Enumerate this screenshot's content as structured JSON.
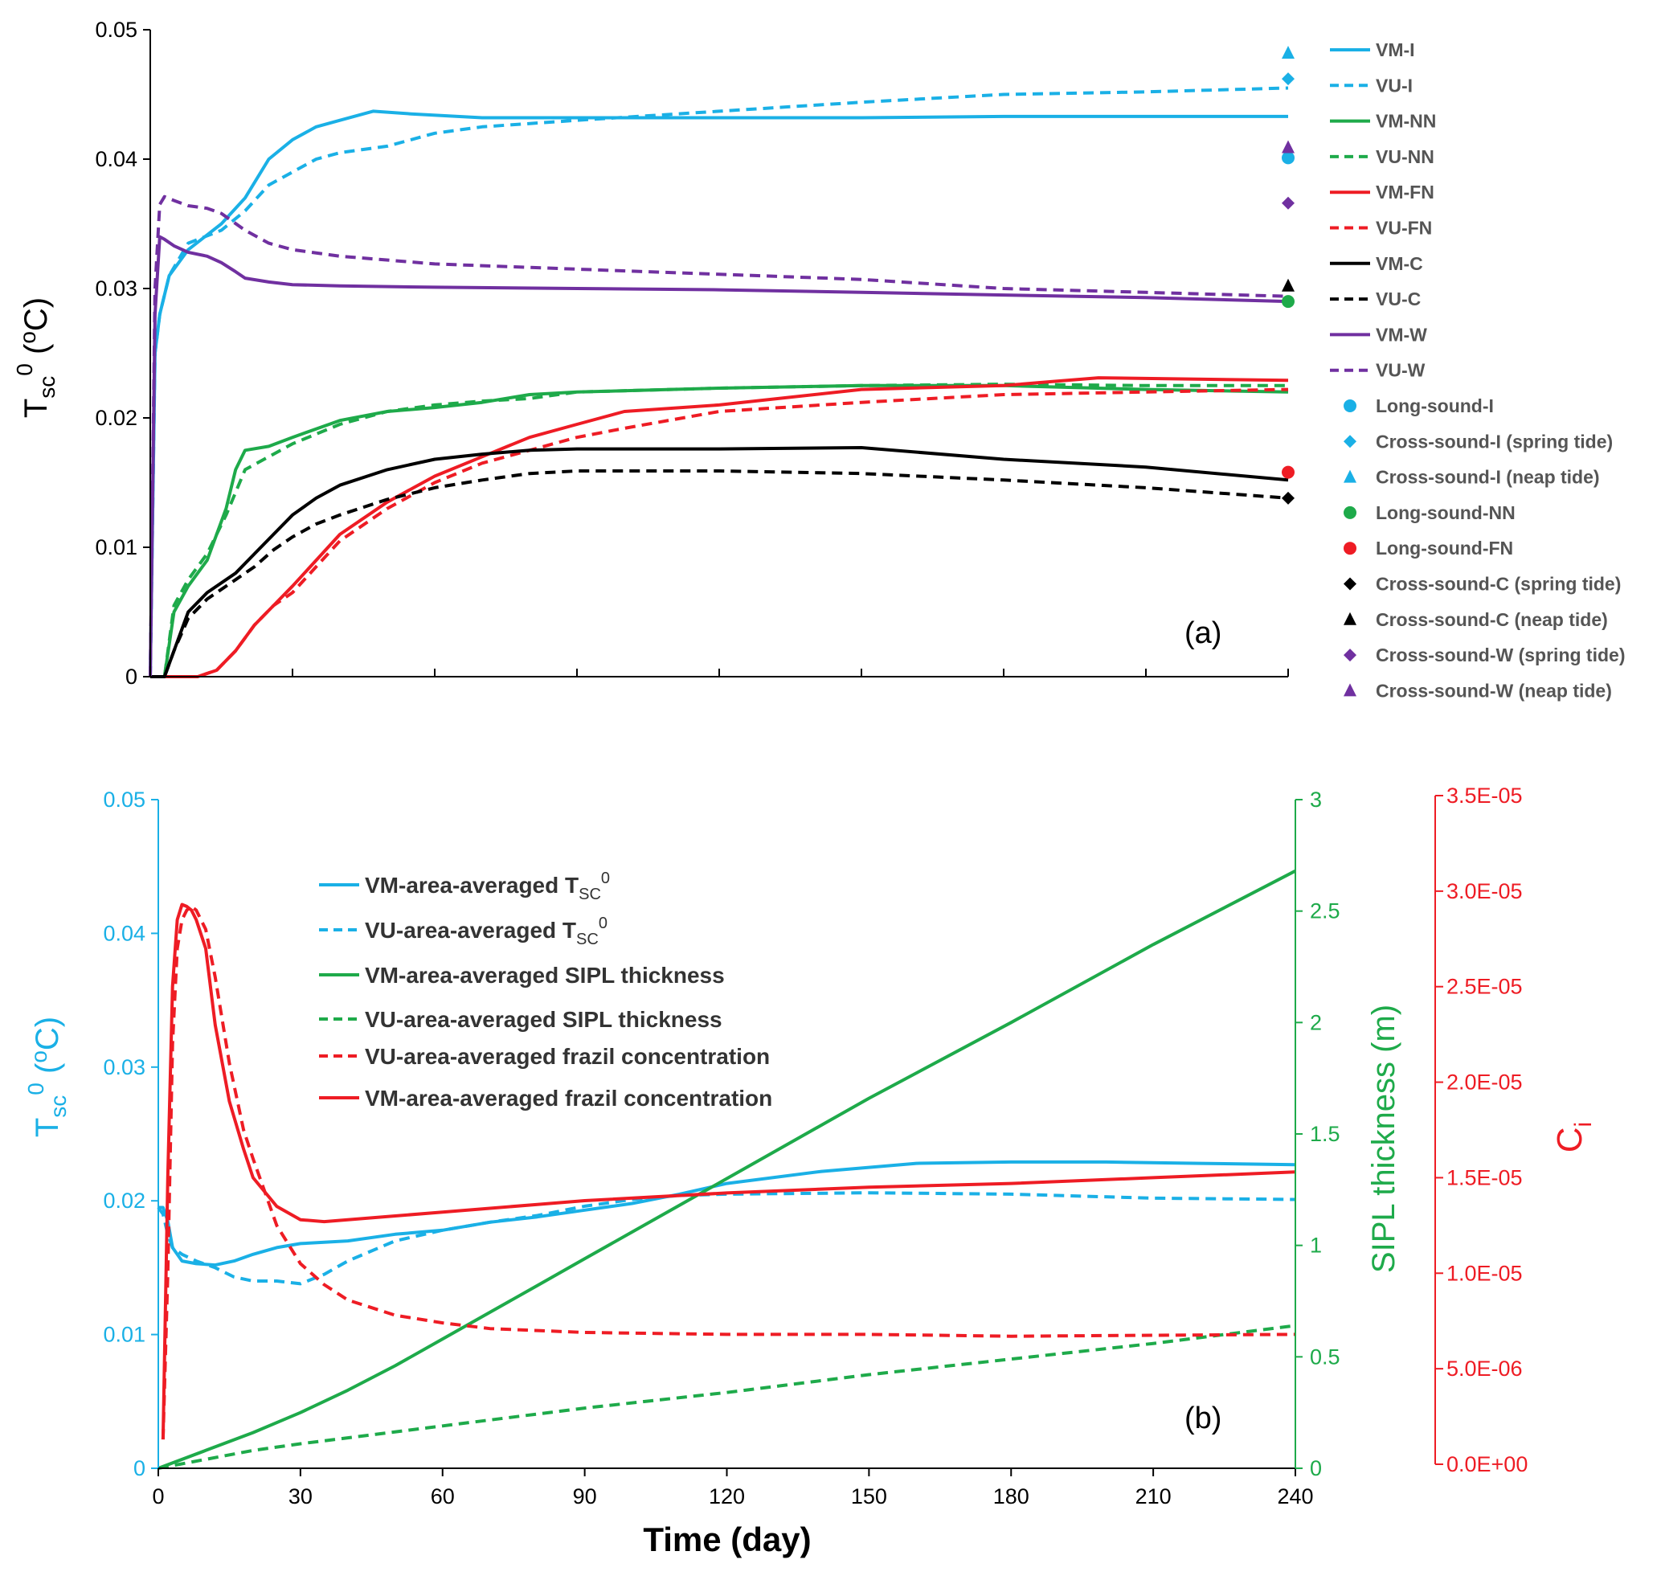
{
  "colors": {
    "blue": "#1ab0e6",
    "green": "#1eaa4a",
    "red": "#ee1c24",
    "black": "#000000",
    "purple": "#7030a0"
  },
  "chart_data": [
    {
      "type": "line",
      "panel_label": "(a)",
      "ylabel": "Tsc0 (oC)",
      "ylabel_parts": {
        "main": "T",
        "sub": "sc",
        "sup": "0",
        "unit_open": " (",
        "unit_sup": "o",
        "unit_close": "C)"
      },
      "xlim": [
        0,
        240
      ],
      "ylim": [
        0,
        0.05
      ],
      "y_ticks": [
        "0",
        "0.01",
        "0.02",
        "0.03",
        "0.04",
        "0.05"
      ],
      "series": [
        {
          "name": "VM-I",
          "color": "#1ab0e6",
          "dash": false,
          "x": [
            0,
            1,
            2,
            4,
            8,
            15,
            20,
            25,
            30,
            35,
            40,
            47,
            55,
            70,
            90,
            120,
            150,
            180,
            210,
            240
          ],
          "y": [
            0.0,
            0.025,
            0.028,
            0.031,
            0.033,
            0.035,
            0.037,
            0.04,
            0.0415,
            0.0425,
            0.043,
            0.0437,
            0.0435,
            0.0432,
            0.0432,
            0.0432,
            0.0432,
            0.0433,
            0.0433,
            0.0433
          ]
        },
        {
          "name": "VU-I",
          "color": "#1ab0e6",
          "dash": true,
          "x": [
            0,
            1,
            2,
            4,
            8,
            15,
            20,
            25,
            30,
            35,
            40,
            50,
            60,
            70,
            90,
            120,
            150,
            180,
            210,
            240
          ],
          "y": [
            0.0,
            0.025,
            0.028,
            0.031,
            0.0335,
            0.0345,
            0.036,
            0.038,
            0.039,
            0.04,
            0.0405,
            0.041,
            0.042,
            0.0425,
            0.043,
            0.0437,
            0.0444,
            0.045,
            0.0452,
            0.0455
          ]
        },
        {
          "name": "VM-NN",
          "color": "#1eaa4a",
          "dash": false,
          "x": [
            0,
            3,
            5,
            8,
            12,
            16,
            18,
            20,
            25,
            30,
            40,
            50,
            60,
            70,
            80,
            90,
            120,
            150,
            180,
            210,
            240
          ],
          "y": [
            0.0,
            0.0,
            0.005,
            0.007,
            0.009,
            0.013,
            0.016,
            0.0175,
            0.0178,
            0.0185,
            0.0198,
            0.0205,
            0.0208,
            0.0212,
            0.0218,
            0.022,
            0.0223,
            0.0225,
            0.0225,
            0.0222,
            0.022
          ]
        },
        {
          "name": "VU-NN",
          "color": "#1eaa4a",
          "dash": true,
          "x": [
            0,
            3,
            5,
            8,
            12,
            16,
            20,
            25,
            30,
            40,
            50,
            60,
            70,
            80,
            90,
            120,
            150,
            180,
            210,
            240
          ],
          "y": [
            0.0,
            0.0,
            0.0055,
            0.0075,
            0.0095,
            0.0125,
            0.016,
            0.017,
            0.018,
            0.0195,
            0.0205,
            0.021,
            0.0213,
            0.0215,
            0.022,
            0.0223,
            0.0225,
            0.0226,
            0.0225,
            0.0225
          ]
        },
        {
          "name": "VM-FN",
          "color": "#ee1c24",
          "dash": false,
          "x": [
            0,
            5,
            10,
            14,
            18,
            22,
            26,
            30,
            35,
            40,
            50,
            60,
            70,
            80,
            90,
            100,
            120,
            150,
            180,
            190,
            200,
            240
          ],
          "y": [
            0.0,
            0.0,
            0.0,
            0.0005,
            0.002,
            0.004,
            0.0055,
            0.007,
            0.009,
            0.011,
            0.0135,
            0.0155,
            0.017,
            0.0185,
            0.0195,
            0.0205,
            0.021,
            0.0222,
            0.0225,
            0.0228,
            0.0231,
            0.0229
          ]
        },
        {
          "name": "VU-FN",
          "color": "#ee1c24",
          "dash": true,
          "x": [
            0,
            5,
            10,
            14,
            18,
            22,
            26,
            30,
            35,
            40,
            50,
            60,
            70,
            80,
            90,
            100,
            120,
            150,
            180,
            210,
            240
          ],
          "y": [
            0.0,
            0.0,
            0.0,
            0.0005,
            0.002,
            0.004,
            0.0055,
            0.0065,
            0.0085,
            0.0105,
            0.013,
            0.015,
            0.0165,
            0.0175,
            0.0185,
            0.0192,
            0.0205,
            0.0212,
            0.0218,
            0.022,
            0.0222
          ]
        },
        {
          "name": "VM-C",
          "color": "#000000",
          "dash": false,
          "x": [
            0,
            3,
            5,
            8,
            12,
            18,
            22,
            26,
            30,
            35,
            40,
            50,
            60,
            70,
            80,
            90,
            120,
            150,
            180,
            210,
            240
          ],
          "y": [
            0.0,
            0.0,
            0.002,
            0.005,
            0.0065,
            0.008,
            0.0095,
            0.011,
            0.0125,
            0.0138,
            0.0148,
            0.016,
            0.0168,
            0.0172,
            0.0175,
            0.0176,
            0.0176,
            0.0177,
            0.0168,
            0.0162,
            0.0152
          ]
        },
        {
          "name": "VU-C",
          "color": "#000000",
          "dash": true,
          "x": [
            0,
            3,
            5,
            8,
            12,
            18,
            22,
            26,
            30,
            35,
            40,
            50,
            60,
            70,
            80,
            90,
            120,
            150,
            180,
            210,
            240
          ],
          "y": [
            0.0,
            0.0,
            0.002,
            0.0045,
            0.006,
            0.0075,
            0.0085,
            0.0098,
            0.0108,
            0.0118,
            0.0125,
            0.0137,
            0.0146,
            0.0152,
            0.0157,
            0.0159,
            0.0159,
            0.0157,
            0.0152,
            0.0146,
            0.0138
          ]
        },
        {
          "name": "VM-W",
          "color": "#7030a0",
          "dash": false,
          "x": [
            0,
            1,
            2,
            3,
            5,
            8,
            12,
            15,
            18,
            20,
            25,
            30,
            40,
            60,
            90,
            120,
            150,
            180,
            210,
            240
          ],
          "y": [
            0.0,
            0.028,
            0.034,
            0.0338,
            0.0333,
            0.0328,
            0.0325,
            0.032,
            0.0313,
            0.0308,
            0.0305,
            0.0303,
            0.0302,
            0.0301,
            0.03,
            0.0299,
            0.0297,
            0.0295,
            0.0293,
            0.029
          ]
        },
        {
          "name": "VU-W",
          "color": "#7030a0",
          "dash": true,
          "x": [
            0,
            1,
            2,
            3,
            5,
            8,
            12,
            15,
            20,
            25,
            30,
            40,
            60,
            90,
            120,
            150,
            180,
            210,
            240
          ],
          "y": [
            0.0,
            0.03,
            0.0365,
            0.0371,
            0.0368,
            0.0364,
            0.0362,
            0.0358,
            0.0345,
            0.0335,
            0.033,
            0.0325,
            0.0319,
            0.0315,
            0.0311,
            0.0307,
            0.03,
            0.0297,
            0.0294
          ]
        }
      ],
      "markers": [
        {
          "name": "Long-sound-I",
          "shape": "circle",
          "color": "#1ab0e6",
          "x": 240,
          "y": 0.0401
        },
        {
          "name": "Cross-sound-I (spring tide)",
          "shape": "diamond",
          "color": "#1ab0e6",
          "x": 240,
          "y": 0.0462
        },
        {
          "name": "Cross-sound-I (neap tide)",
          "shape": "triangle",
          "color": "#1ab0e6",
          "x": 240,
          "y": 0.0482
        },
        {
          "name": "Long-sound-NN",
          "shape": "circle",
          "color": "#1eaa4a",
          "x": 240,
          "y": 0.029
        },
        {
          "name": "Long-sound-FN",
          "shape": "circle",
          "color": "#ee1c24",
          "x": 240,
          "y": 0.0158
        },
        {
          "name": "Cross-sound-C  (spring tide)",
          "shape": "diamond",
          "color": "#000000",
          "x": 240,
          "y": 0.0138
        },
        {
          "name": "Cross-sound-C  (neap tide)",
          "shape": "triangle",
          "color": "#000000",
          "x": 240,
          "y": 0.0302
        },
        {
          "name": "Cross-sound-W (spring tide)",
          "shape": "diamond",
          "color": "#7030a0",
          "x": 240,
          "y": 0.0366
        },
        {
          "name": "Cross-sound-W (neap tide)",
          "shape": "triangle",
          "color": "#7030a0",
          "x": 240,
          "y": 0.0409
        }
      ],
      "legend_position": "right"
    },
    {
      "type": "line",
      "panel_label": "(b)",
      "xlabel": "Time (day)",
      "xlim": [
        0,
        240
      ],
      "x_ticks": [
        "0",
        "30",
        "60",
        "90",
        "120",
        "150",
        "180",
        "210",
        "240"
      ],
      "y_left": {
        "label_parts": {
          "main": "T",
          "sub": "sc",
          "sup": "0",
          "unit_open": " (",
          "unit_sup": "o",
          "unit_close": "C)"
        },
        "ylim": [
          0,
          0.05
        ],
        "ticks": [
          "0",
          "0.01",
          "0.02",
          "0.03",
          "0.04",
          "0.05"
        ],
        "color": "#1ab0e6"
      },
      "y_right1": {
        "label": "SIPL thickness (m)",
        "ylim": [
          0,
          3
        ],
        "ticks": [
          "0",
          "0.5",
          "1",
          "1.5",
          "2",
          "2.5",
          "3"
        ],
        "color": "#1eaa4a"
      },
      "y_right2": {
        "label_parts": {
          "main": "C",
          "sub": "i"
        },
        "ylim": [
          0,
          3.5e-05
        ],
        "ticks": [
          "0.0E+00",
          "5.0E-06",
          "1.0E-05",
          "1.5E-05",
          "2.0E-05",
          "2.5E-05",
          "3.0E-05",
          "3.5E-05"
        ],
        "color": "#ee1c24"
      },
      "legend": [
        {
          "label": "VM-area-averaged T",
          "sub": "SC",
          "sup": "0",
          "color": "#1ab0e6",
          "dash": false
        },
        {
          "label": "VU-area-averaged T",
          "sub": "SC",
          "sup": "0",
          "color": "#1ab0e6",
          "dash": true
        },
        {
          "label": "VM-area-averaged SIPL thickness",
          "color": "#1eaa4a",
          "dash": false
        },
        {
          "label": "VU-area-averaged SIPL thickness",
          "color": "#1eaa4a",
          "dash": true
        },
        {
          "label": "VU-area-averaged frazil concentration",
          "color": "#ee1c24",
          "dash": true
        },
        {
          "label": "VM-area-averaged frazil concentration",
          "color": "#ee1c24",
          "dash": false
        }
      ],
      "legend_position": "top-left",
      "series": [
        {
          "name": "VM-area-averaged TSC0",
          "axis": "left",
          "color": "#1ab0e6",
          "dash": false,
          "x": [
            0,
            1,
            2,
            3,
            5,
            8,
            12,
            16,
            20,
            25,
            30,
            40,
            50,
            60,
            70,
            80,
            90,
            100,
            110,
            120,
            140,
            160,
            180,
            200,
            220,
            240
          ],
          "y": [
            0.0195,
            0.0195,
            0.0185,
            0.0165,
            0.0155,
            0.0153,
            0.0152,
            0.0155,
            0.016,
            0.0165,
            0.0168,
            0.017,
            0.0175,
            0.0178,
            0.0184,
            0.0188,
            0.0193,
            0.0198,
            0.0205,
            0.0213,
            0.0222,
            0.0228,
            0.0229,
            0.0229,
            0.0228,
            0.0227
          ]
        },
        {
          "name": "VU-area-averaged TSC0",
          "axis": "left",
          "color": "#1ab0e6",
          "dash": true,
          "x": [
            0,
            1,
            2,
            3,
            5,
            8,
            12,
            16,
            20,
            25,
            30,
            35,
            40,
            50,
            60,
            70,
            80,
            90,
            100,
            110,
            120,
            150,
            180,
            210,
            240
          ],
          "y": [
            0.0195,
            0.019,
            0.0175,
            0.0165,
            0.016,
            0.0155,
            0.015,
            0.0143,
            0.014,
            0.014,
            0.0138,
            0.0145,
            0.0155,
            0.017,
            0.0178,
            0.0184,
            0.0189,
            0.0196,
            0.0201,
            0.0204,
            0.0205,
            0.0206,
            0.0205,
            0.0202,
            0.0201
          ]
        },
        {
          "name": "VM-area-averaged SIPL thickness",
          "axis": "right1",
          "color": "#1eaa4a",
          "dash": false,
          "x": [
            0,
            10,
            20,
            30,
            40,
            50,
            60,
            70,
            80,
            90,
            100,
            120,
            150,
            180,
            210,
            240
          ],
          "y": [
            0.0,
            0.08,
            0.16,
            0.25,
            0.35,
            0.46,
            0.58,
            0.7,
            0.82,
            0.94,
            1.06,
            1.3,
            1.66,
            2.0,
            2.35,
            2.68
          ]
        },
        {
          "name": "VU-area-averaged SIPL thickness",
          "axis": "right1",
          "color": "#1eaa4a",
          "dash": true,
          "x": [
            0,
            10,
            20,
            30,
            60,
            90,
            120,
            150,
            180,
            210,
            240
          ],
          "y": [
            0.0,
            0.04,
            0.08,
            0.11,
            0.19,
            0.27,
            0.34,
            0.42,
            0.49,
            0.56,
            0.64
          ]
        },
        {
          "name": "VU-area-averaged frazil concentration",
          "axis": "right2",
          "color": "#ee1c24",
          "dash": true,
          "x": [
            1,
            2,
            3,
            4,
            5,
            6,
            7,
            8,
            10,
            12,
            15,
            18,
            20,
            25,
            30,
            35,
            40,
            50,
            60,
            70,
            80,
            90,
            120,
            150,
            180,
            210,
            240
          ],
          "y": [
            1.3e-06,
            1e-05,
            2.2e-05,
            2.7e-05,
            2.85e-05,
            2.9e-05,
            2.92e-05,
            2.9e-05,
            2.8e-05,
            2.55e-05,
            2.1e-05,
            1.75e-05,
            1.6e-05,
            1.25e-05,
            1.05e-05,
            9.4e-06,
            8.6e-06,
            7.8e-06,
            7.4e-06,
            7.1e-06,
            7e-06,
            6.9e-06,
            6.8e-06,
            6.8e-06,
            6.7e-06,
            6.75e-06,
            6.8e-06
          ]
        },
        {
          "name": "VM-area-averaged frazil concentration",
          "axis": "right2",
          "color": "#ee1c24",
          "dash": false,
          "x": [
            1,
            2,
            3,
            4,
            5,
            6,
            7,
            8,
            10,
            12,
            15,
            18,
            20,
            25,
            30,
            35,
            40,
            50,
            60,
            70,
            80,
            90,
            120,
            150,
            180,
            210,
            240
          ],
          "y": [
            1.3e-06,
            1.5e-05,
            2.5e-05,
            2.85e-05,
            2.93e-05,
            2.92e-05,
            2.9e-05,
            2.85e-05,
            2.7e-05,
            2.3e-05,
            1.9e-05,
            1.65e-05,
            1.5e-05,
            1.35e-05,
            1.28e-05,
            1.27e-05,
            1.28e-05,
            1.3e-05,
            1.32e-05,
            1.34e-05,
            1.36e-05,
            1.38e-05,
            1.42e-05,
            1.45e-05,
            1.47e-05,
            1.5e-05,
            1.53e-05
          ]
        }
      ]
    }
  ]
}
